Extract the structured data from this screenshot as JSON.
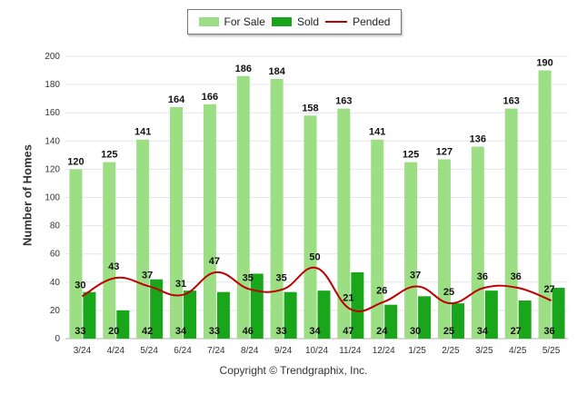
{
  "chart_data": {
    "type": "bar",
    "categories": [
      "3/24",
      "4/24",
      "5/24",
      "6/24",
      "7/24",
      "8/24",
      "9/24",
      "10/24",
      "11/24",
      "12/24",
      "1/25",
      "2/25",
      "3/25",
      "4/25",
      "5/25"
    ],
    "series": [
      {
        "name": "For Sale",
        "type": "bar",
        "color": "#9cde84",
        "values": [
          120,
          125,
          141,
          164,
          166,
          186,
          184,
          158,
          163,
          141,
          125,
          127,
          136,
          163,
          190
        ]
      },
      {
        "name": "Sold",
        "type": "bar",
        "color": "#1aa61a",
        "values": [
          33,
          20,
          42,
          34,
          33,
          46,
          33,
          34,
          47,
          24,
          30,
          25,
          34,
          27,
          36
        ]
      },
      {
        "name": "Pended",
        "type": "line",
        "color": "#c00000",
        "values": [
          30,
          43,
          37,
          31,
          47,
          35,
          35,
          50,
          21,
          26,
          37,
          25,
          36,
          36,
          27
        ]
      }
    ],
    "ylabel": "Number of Homes",
    "ylim": [
      0,
      200
    ],
    "yticks": [
      0,
      20,
      40,
      60,
      80,
      100,
      120,
      140,
      160,
      180,
      200
    ],
    "grid": true,
    "legend_position": "top-center"
  },
  "footer": {
    "copyright": "Copyright © Trendgraphix, Inc."
  }
}
